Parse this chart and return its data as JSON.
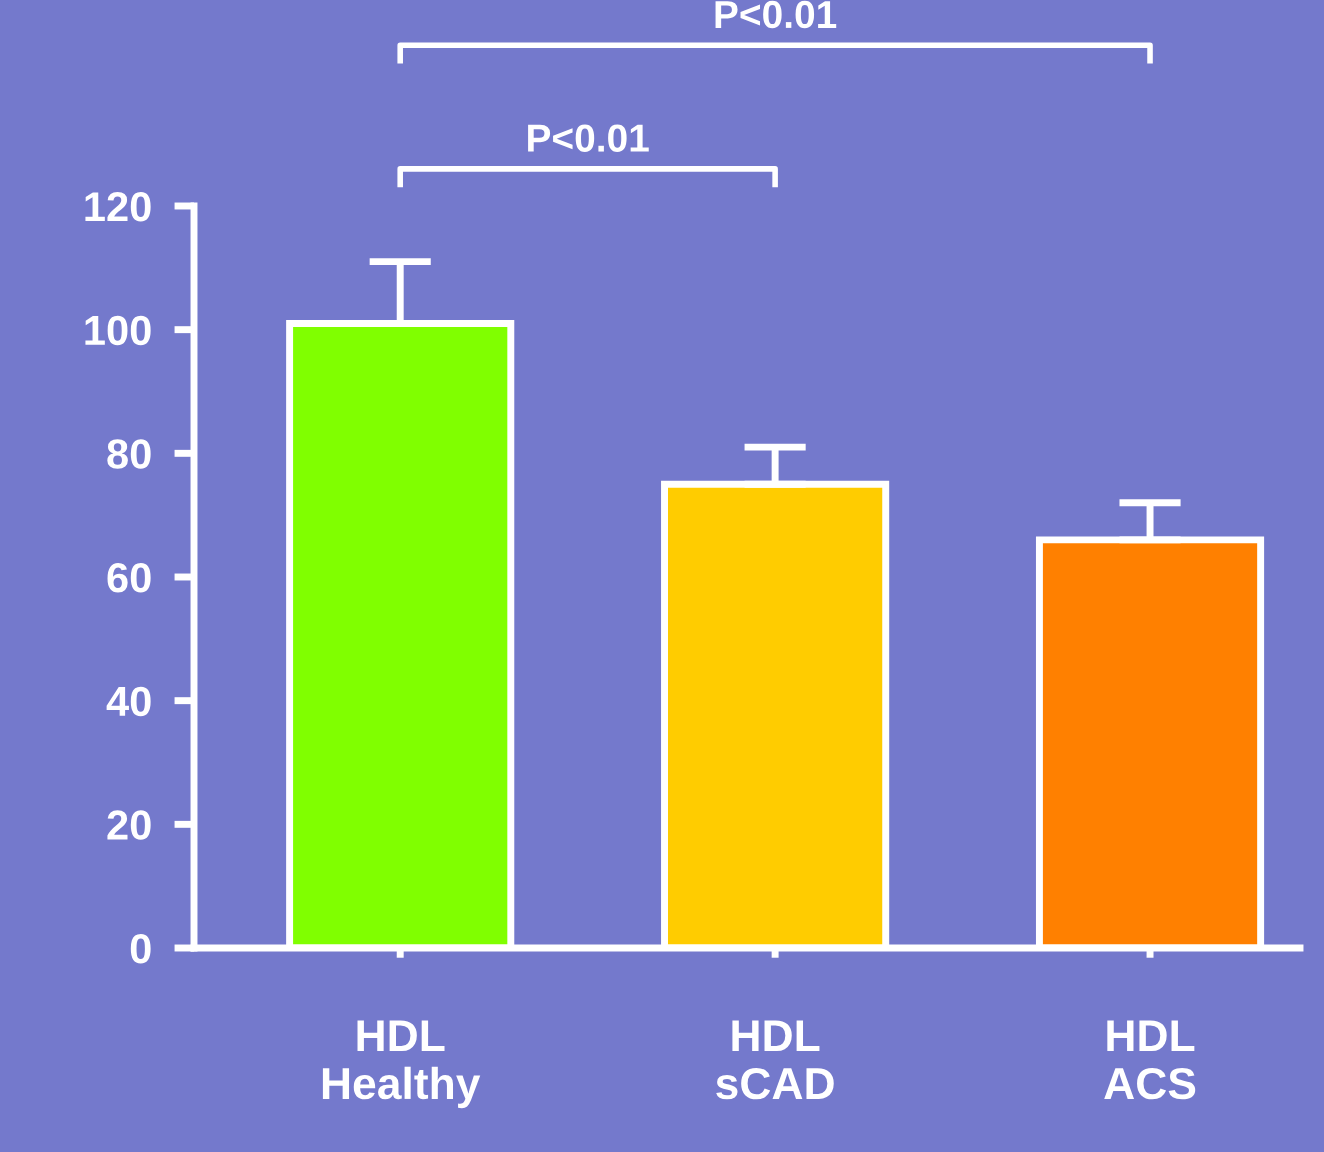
{
  "chart_data": {
    "type": "bar",
    "categories": [
      "HDL\nHealthy",
      "HDL\nsCAD",
      "HDL\nACS"
    ],
    "values": [
      101,
      75,
      66
    ],
    "colors": [
      "#80ff00",
      "#ffcc00",
      "#ff8000"
    ],
    "errors": [
      [
        101,
        111
      ],
      [
        75,
        81
      ],
      [
        66,
        72
      ]
    ],
    "ylim": [
      0,
      120
    ],
    "yticks": [
      0,
      20,
      40,
      60,
      80,
      100,
      120
    ],
    "grid": false,
    "legend": false,
    "annotations": [
      "P<0.01",
      "P<0.01"
    ]
  }
}
